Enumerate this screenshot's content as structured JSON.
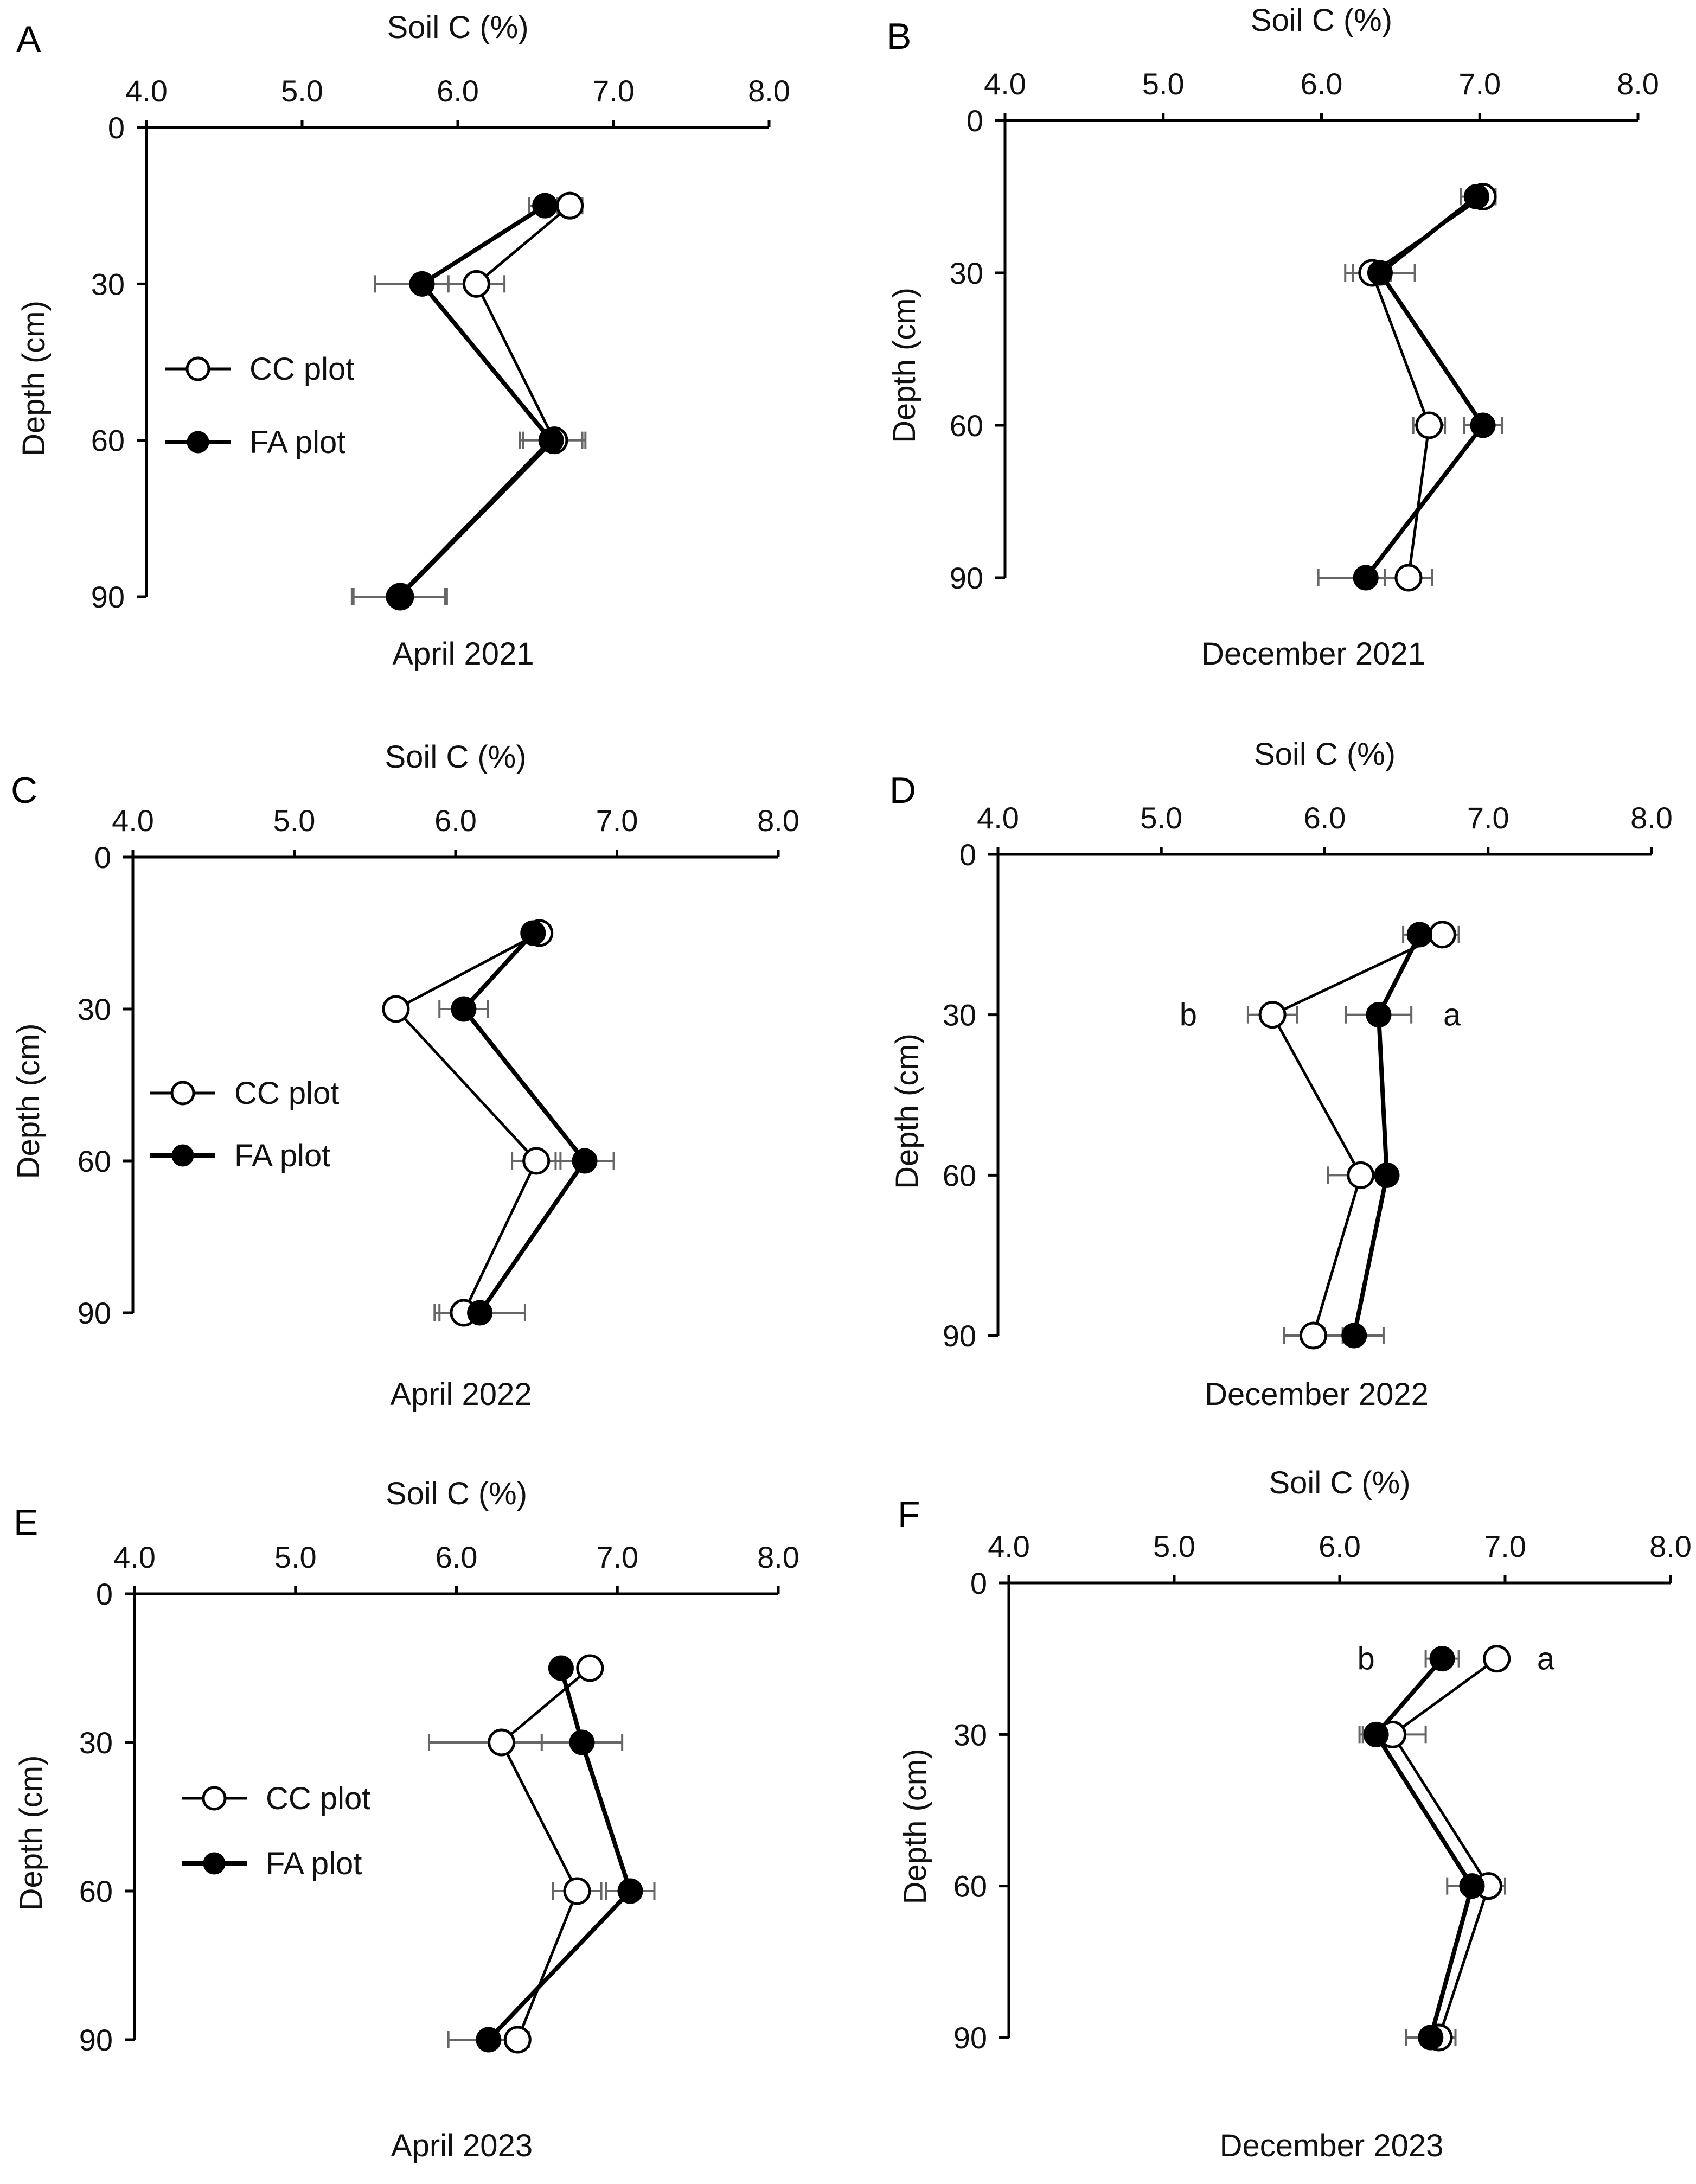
{
  "figure": {
    "background": "#ffffff",
    "cc_color": "#000000",
    "fa_color": "#000000",
    "error_color": "#666666"
  },
  "chart_data": [
    {
      "panel": "A",
      "type": "line",
      "title": "",
      "caption": "April 2021",
      "xlabel": "Soil C (%)",
      "ylabel": "Depth (cm)",
      "xlim": [
        4,
        8
      ],
      "ylim": [
        90,
        0
      ],
      "x_ticks": [
        "4.0",
        "5.0",
        "6.0",
        "7.0",
        "8.0"
      ],
      "y_ticks": [
        "0",
        "30",
        "60",
        "90"
      ],
      "legend": [
        "CC plot",
        "FA plot"
      ],
      "series": [
        {
          "name": "CC plot",
          "marker": "open-circle",
          "depth": [
            15,
            30,
            60,
            90
          ],
          "values": [
            6.72,
            6.12,
            6.62,
            5.63
          ],
          "err": [
            0.08,
            0.18,
            0.2,
            0.3
          ]
        },
        {
          "name": "FA plot",
          "marker": "filled-circle",
          "depth": [
            15,
            30,
            60,
            90
          ],
          "values": [
            6.56,
            5.77,
            6.6,
            5.62
          ],
          "err": [
            0.1,
            0.3,
            0.2,
            0.3
          ]
        }
      ],
      "annotations": []
    },
    {
      "panel": "B",
      "type": "line",
      "title": "",
      "caption": "December 2021",
      "xlabel": "Soil C (%)",
      "ylabel": "Depth (cm)",
      "xlim": [
        4,
        8
      ],
      "ylim": [
        90,
        0
      ],
      "x_ticks": [
        "4.0",
        "5.0",
        "6.0",
        "7.0",
        "8.0"
      ],
      "y_ticks": [
        "0",
        "30",
        "60",
        "90"
      ],
      "legend": [],
      "series": [
        {
          "name": "CC plot",
          "marker": "open-circle",
          "depth": [
            15,
            30,
            60,
            90
          ],
          "values": [
            7.02,
            6.32,
            6.68,
            6.55
          ],
          "err": [
            0.08,
            0.12,
            0.1,
            0.15
          ]
        },
        {
          "name": "FA plot",
          "marker": "filled-circle",
          "depth": [
            15,
            30,
            60,
            90
          ],
          "values": [
            6.98,
            6.37,
            7.02,
            6.28
          ],
          "err": [
            0.1,
            0.22,
            0.12,
            0.3
          ]
        }
      ],
      "annotations": []
    },
    {
      "panel": "C",
      "type": "line",
      "title": "",
      "caption": "April 2022",
      "xlabel": "Soil C (%)",
      "ylabel": "Depth (cm)",
      "xlim": [
        4,
        8
      ],
      "ylim": [
        90,
        0
      ],
      "x_ticks": [
        "4.0",
        "5.0",
        "6.0",
        "7.0",
        "8.0"
      ],
      "y_ticks": [
        "0",
        "30",
        "60",
        "90"
      ],
      "legend": [
        "CC plot",
        "FA plot"
      ],
      "series": [
        {
          "name": "CC plot",
          "marker": "open-circle",
          "depth": [
            15,
            30,
            60,
            90
          ],
          "values": [
            6.52,
            5.63,
            6.5,
            6.05
          ],
          "err": [
            0.05,
            0.05,
            0.15,
            0.15
          ]
        },
        {
          "name": "FA plot",
          "marker": "filled-circle",
          "depth": [
            15,
            30,
            60,
            90
          ],
          "values": [
            6.48,
            6.05,
            6.8,
            6.15
          ],
          "err": [
            0.05,
            0.15,
            0.18,
            0.28
          ]
        }
      ],
      "annotations": []
    },
    {
      "panel": "D",
      "type": "line",
      "title": "",
      "caption": "December 2022",
      "xlabel": "Soil C (%)",
      "ylabel": "Depth (cm)",
      "xlim": [
        4,
        8
      ],
      "ylim": [
        90,
        0
      ],
      "x_ticks": [
        "4.0",
        "5.0",
        "6.0",
        "7.0",
        "8.0"
      ],
      "y_ticks": [
        "0",
        "30",
        "60",
        "90"
      ],
      "legend": [],
      "series": [
        {
          "name": "CC plot",
          "marker": "open-circle",
          "depth": [
            15,
            30,
            60,
            90
          ],
          "values": [
            6.72,
            5.68,
            6.22,
            5.93
          ],
          "err": [
            0.1,
            0.15,
            0.2,
            0.18
          ]
        },
        {
          "name": "FA plot",
          "marker": "filled-circle",
          "depth": [
            15,
            30,
            60,
            90
          ],
          "values": [
            6.58,
            6.33,
            6.38,
            6.18
          ],
          "err": [
            0.1,
            0.2,
            0.05,
            0.18
          ]
        }
      ],
      "annotations": [
        {
          "text": "b",
          "series": "CC plot",
          "depth": 30
        },
        {
          "text": "a",
          "series": "FA plot",
          "depth": 30
        }
      ]
    },
    {
      "panel": "E",
      "type": "line",
      "title": "",
      "caption": "April 2023",
      "xlabel": "Soil C (%)",
      "ylabel": "Depth (cm)",
      "xlim": [
        4,
        8
      ],
      "ylim": [
        90,
        0
      ],
      "x_ticks": [
        "4.0",
        "5.0",
        "6.0",
        "7.0",
        "8.0"
      ],
      "y_ticks": [
        "0",
        "30",
        "60",
        "90"
      ],
      "legend": [
        "CC plot",
        "FA plot"
      ],
      "series": [
        {
          "name": "CC plot",
          "marker": "open-circle",
          "depth": [
            15,
            30,
            60,
            90
          ],
          "values": [
            6.83,
            6.28,
            6.75,
            6.38
          ],
          "err": [
            0.05,
            0.45,
            0.15,
            0.05
          ]
        },
        {
          "name": "FA plot",
          "marker": "filled-circle",
          "depth": [
            15,
            30,
            60,
            90
          ],
          "values": [
            6.65,
            6.78,
            7.08,
            6.2
          ],
          "err": [
            0.05,
            0.25,
            0.15,
            0.25
          ]
        }
      ],
      "annotations": []
    },
    {
      "panel": "F",
      "type": "line",
      "title": "",
      "caption": "December 2023",
      "xlabel": "Soil C (%)",
      "ylabel": "Depth (cm)",
      "xlim": [
        4,
        8
      ],
      "ylim": [
        90,
        0
      ],
      "x_ticks": [
        "4.0",
        "5.0",
        "6.0",
        "7.0",
        "8.0"
      ],
      "y_ticks": [
        "0",
        "30",
        "60",
        "90"
      ],
      "legend": [],
      "series": [
        {
          "name": "CC plot",
          "marker": "open-circle",
          "depth": [
            15,
            30,
            60,
            90
          ],
          "values": [
            6.95,
            6.32,
            6.9,
            6.6
          ],
          "err": [
            0.05,
            0.2,
            0.1,
            0.1
          ]
        },
        {
          "name": "FA plot",
          "marker": "filled-circle",
          "depth": [
            15,
            30,
            60,
            90
          ],
          "values": [
            6.62,
            6.22,
            6.8,
            6.55
          ],
          "err": [
            0.1,
            0.08,
            0.15,
            0.15
          ]
        }
      ],
      "annotations": [
        {
          "text": "b",
          "series": "FA plot",
          "depth": 15
        },
        {
          "text": "a",
          "series": "CC plot",
          "depth": 15
        }
      ]
    }
  ]
}
